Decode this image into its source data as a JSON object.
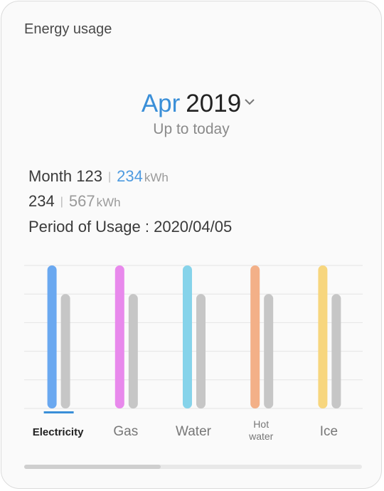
{
  "header": {
    "title": "Energy usage"
  },
  "period": {
    "month": "Apr",
    "year": "2019",
    "subtitle": "Up to today"
  },
  "stats": {
    "row1": {
      "label": "Month 123",
      "value": "234",
      "unit": "kWh"
    },
    "row2": {
      "label": "234",
      "value": "567",
      "unit": "kWh"
    },
    "period_label": "Period of Usage : 2020/04/05"
  },
  "colors": {
    "accent": "#3a8fd8",
    "electricity": "#6aa8f0",
    "gas": "#e889ec",
    "water": "#86d3ea",
    "hot_water": "#f3b088",
    "ice": "#f7d67e",
    "compare": "#c6c6c6"
  },
  "scroll": {
    "position": 0.4
  },
  "chart_data": {
    "type": "bar",
    "categories": [
      "Electricity",
      "Gas",
      "Water",
      "Hot\nwater",
      "Ice"
    ],
    "series": [
      {
        "values": [
          5,
          5,
          5,
          5,
          5
        ],
        "colors": [
          "#6aa8f0",
          "#e889ec",
          "#86d3ea",
          "#f3b088",
          "#f7d67e"
        ]
      },
      {
        "values": [
          4,
          4,
          4,
          4,
          4
        ],
        "color": "#c6c6c6"
      }
    ],
    "ylim": [
      0,
      5
    ],
    "grid": true,
    "selected": "Electricity"
  }
}
